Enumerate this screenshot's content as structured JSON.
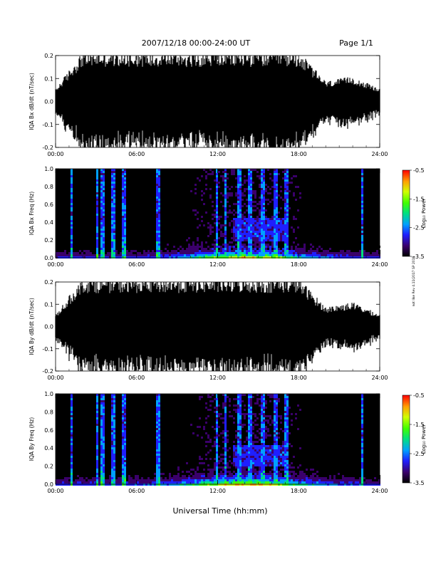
{
  "header": {
    "title": "2007/12/18  00:00-24:00 UT",
    "page": "Page 1/1"
  },
  "footer": {
    "xlabel": "Universal Time (hh:mm)",
    "side_note": "not like Rev 4.11(2017 SP 2018"
  },
  "colorbar": {
    "label": "Log₁₀ Power",
    "ticks": [
      "-0.5",
      "-1.5",
      "-2.5",
      "-3.5"
    ],
    "range": [
      -3.5,
      -0.5
    ],
    "colors": [
      "#000000",
      "#3a006a",
      "#1f1fff",
      "#00a0ff",
      "#00e080",
      "#40ff00",
      "#d0ff00",
      "#ffa000",
      "#ff0000"
    ]
  },
  "chart_data": [
    {
      "type": "line",
      "panel": "bx_waveform",
      "ylabel": "IQA Bx dB/dt (nT/sec)",
      "x_ticks": [
        "00:00",
        "06:00",
        "12:00",
        "18:00",
        "24:00"
      ],
      "y_ticks": [
        "0.2",
        "0.1",
        "0.0",
        "-0.1",
        "-0.2"
      ],
      "xlim": [
        0,
        24
      ],
      "ylim": [
        -0.2,
        0.2
      ],
      "series": [
        {
          "x": [
            0,
            2,
            4,
            6,
            8,
            10,
            12,
            14,
            16,
            18,
            20,
            22,
            24
          ],
          "y_envelope": [
            0.05,
            0.2,
            0.2,
            0.2,
            0.2,
            0.2,
            0.2,
            0.2,
            0.2,
            0.2,
            0.08,
            0.1,
            0.05
          ]
        }
      ]
    },
    {
      "type": "heatmap",
      "panel": "bx_spectrogram",
      "ylabel": "IQA Bx Freq (Hz)",
      "x_ticks": [
        "00:00",
        "06:00",
        "12:00",
        "18:00",
        "24:00"
      ],
      "y_ticks": [
        "1.0",
        "0.8",
        "0.6",
        "0.4",
        "0.2",
        "0.0"
      ],
      "xlim": [
        0,
        24
      ],
      "ylim": [
        0,
        1.0
      ]
    },
    {
      "type": "line",
      "panel": "by_waveform",
      "ylabel": "IQA By dB/dt (nT/sec)",
      "x_ticks": [
        "00:00",
        "06:00",
        "12:00",
        "18:00",
        "24:00"
      ],
      "y_ticks": [
        "0.2",
        "0.1",
        "0.0",
        "-0.1",
        "-0.2"
      ],
      "xlim": [
        0,
        24
      ],
      "ylim": [
        -0.2,
        0.2
      ],
      "series": [
        {
          "x": [
            0,
            2,
            4,
            6,
            8,
            10,
            12,
            14,
            16,
            18,
            20,
            22,
            24
          ],
          "y_envelope": [
            0.05,
            0.2,
            0.2,
            0.2,
            0.2,
            0.2,
            0.2,
            0.2,
            0.2,
            0.2,
            0.08,
            0.1,
            0.05
          ]
        }
      ]
    },
    {
      "type": "heatmap",
      "panel": "by_spectrogram",
      "ylabel": "IQA By Freq (Hz)",
      "x_ticks": [
        "00:00",
        "06:00",
        "12:00",
        "18:00",
        "24:00"
      ],
      "y_ticks": [
        "1.0",
        "0.8",
        "0.6",
        "0.4",
        "0.2",
        "0.0"
      ],
      "xlim": [
        0,
        24
      ],
      "ylim": [
        0,
        1.0
      ]
    }
  ]
}
